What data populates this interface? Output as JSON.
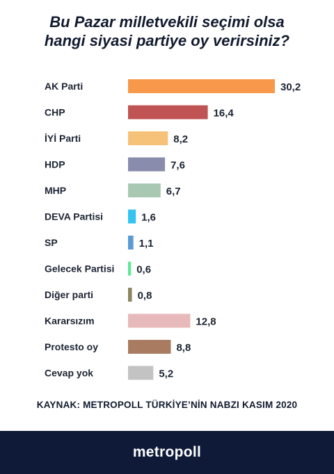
{
  "title_line1": "Bu Pazar milletvekili seçimi olsa",
  "title_line2": "hangi siyasi partiye oy verirsiniz?",
  "source": "KAYNAK: METROPOLL TÜRKİYE’NİN NABZI KASIM 2020",
  "brand": "metropoll",
  "colors": {
    "footer_bg": "#0f1a38",
    "text": "#1b2433"
  },
  "chart_data": {
    "type": "bar",
    "orientation": "horizontal",
    "title": "Bu Pazar milletvekili seçimi olsa hangi siyasi partiye oy verirsiniz?",
    "categories": [
      "AK Parti",
      "CHP",
      "İYİ Parti",
      "HDP",
      "MHP",
      "DEVA Partisi",
      "SP",
      "Gelecek Partisi",
      "Diğer parti",
      "Kararsızım",
      "Protesto oy",
      "Cevap yok"
    ],
    "values": [
      30.2,
      16.4,
      8.2,
      7.6,
      6.7,
      1.6,
      1.1,
      0.6,
      0.8,
      12.8,
      8.8,
      5.2
    ],
    "value_labels": [
      "30,2",
      "16,4",
      "8,2",
      "7,6",
      "6,7",
      "1,6",
      "1,1",
      "0,6",
      "0,8",
      "12,8",
      "8,8",
      "5,2"
    ],
    "colors": [
      "#f7984a",
      "#c05353",
      "#f6c27a",
      "#8a8cad",
      "#a9c8b4",
      "#35c4f2",
      "#5a9bd4",
      "#5bea94",
      "#8c8660",
      "#e8b9bb",
      "#a97c62",
      "#c3c3c3"
    ],
    "xlim": [
      0,
      32
    ],
    "grid": false,
    "legend": "none"
  }
}
